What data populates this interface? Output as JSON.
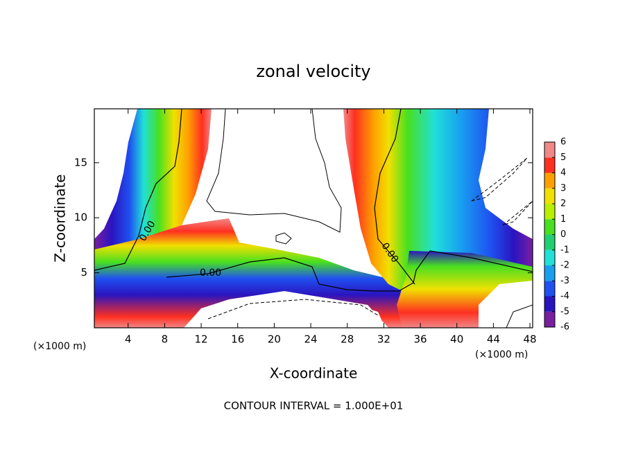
{
  "chart_data": {
    "type": "contour",
    "title": "zonal velocity",
    "xlabel": "X-coordinate",
    "ylabel": "Z-coordinate",
    "x_unit": "(×1000 m)",
    "xlim": [
      0.3,
      48.3
    ],
    "xticks": [
      4,
      8,
      12,
      16,
      20,
      24,
      28,
      32,
      36,
      40,
      44,
      48
    ],
    "ylim": [
      0,
      19.9
    ],
    "yticks": [
      5,
      10,
      15
    ],
    "contour_level": {
      "value": 0,
      "label": "0.00"
    },
    "annotation": "CONTOUR INTERVAL = 1.000E+01",
    "colorbar": {
      "ticks": [
        -6,
        -5,
        -4,
        -3,
        -2,
        -1,
        0,
        1,
        2,
        3,
        4,
        5,
        6
      ],
      "colors": [
        "#7a1fa0",
        "#2a14c0",
        "#1f50f0",
        "#18a0f0",
        "#20e0d8",
        "#20d070",
        "#48e020",
        "#b8f000",
        "#f0e000",
        "#ffa000",
        "#ff3020",
        "#f08888"
      ]
    }
  }
}
